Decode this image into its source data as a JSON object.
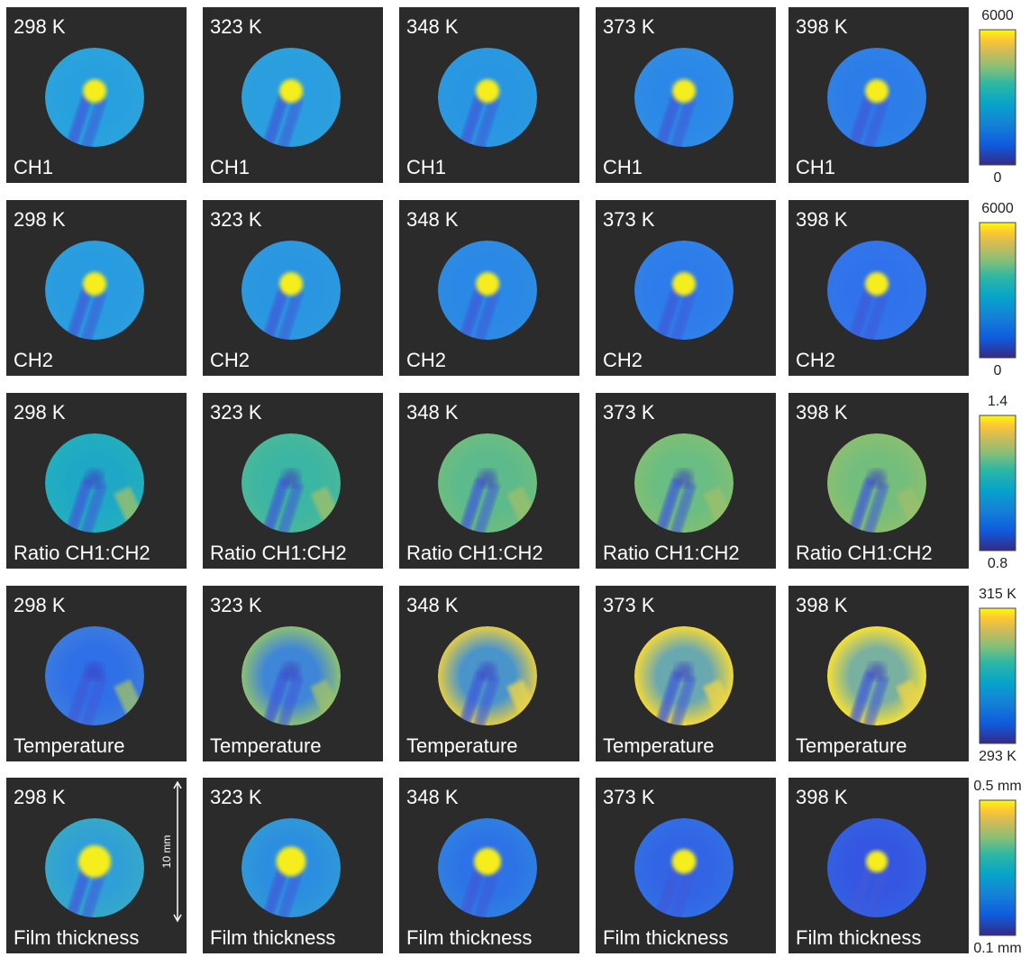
{
  "rows": [
    {
      "panels": [
        {
          "temperature": "298 K",
          "label": "CH1"
        },
        {
          "temperature": "323 K",
          "label": "CH1"
        },
        {
          "temperature": "348 K",
          "label": "CH1"
        },
        {
          "temperature": "373 K",
          "label": "CH1"
        },
        {
          "temperature": "398 K",
          "label": "CH1"
        }
      ],
      "colorbar": {
        "max": "6000",
        "min": "0"
      }
    },
    {
      "panels": [
        {
          "temperature": "298 K",
          "label": "CH2"
        },
        {
          "temperature": "323 K",
          "label": "CH2"
        },
        {
          "temperature": "348 K",
          "label": "CH2"
        },
        {
          "temperature": "373 K",
          "label": "CH2"
        },
        {
          "temperature": "398 K",
          "label": "CH2"
        }
      ],
      "colorbar": {
        "max": "6000",
        "min": "0"
      }
    },
    {
      "panels": [
        {
          "temperature": "298 K",
          "label": "Ratio CH1:CH2"
        },
        {
          "temperature": "323 K",
          "label": "Ratio CH1:CH2"
        },
        {
          "temperature": "348 K",
          "label": "Ratio CH1:CH2"
        },
        {
          "temperature": "373 K",
          "label": "Ratio CH1:CH2"
        },
        {
          "temperature": "398 K",
          "label": "Ratio CH1:CH2"
        }
      ],
      "colorbar": {
        "max": "1.4",
        "min": "0.8"
      }
    },
    {
      "panels": [
        {
          "temperature": "298 K",
          "label": "Temperature"
        },
        {
          "temperature": "323 K",
          "label": "Temperature"
        },
        {
          "temperature": "348 K",
          "label": "Temperature"
        },
        {
          "temperature": "373 K",
          "label": "Temperature"
        },
        {
          "temperature": "398 K",
          "label": "Temperature"
        }
      ],
      "colorbar": {
        "max": "315 K",
        "min": "293 K"
      }
    },
    {
      "panels": [
        {
          "temperature": "298 K",
          "label": "Film thickness"
        },
        {
          "temperature": "323 K",
          "label": "Film thickness"
        },
        {
          "temperature": "348 K",
          "label": "Film thickness"
        },
        {
          "temperature": "373 K",
          "label": "Film thickness"
        },
        {
          "temperature": "398 K",
          "label": "Film thickness"
        }
      ],
      "colorbar": {
        "max": "0.5 mm",
        "min": "0.1 mm"
      }
    }
  ],
  "scale_bar": {
    "label": "10 mm"
  }
}
